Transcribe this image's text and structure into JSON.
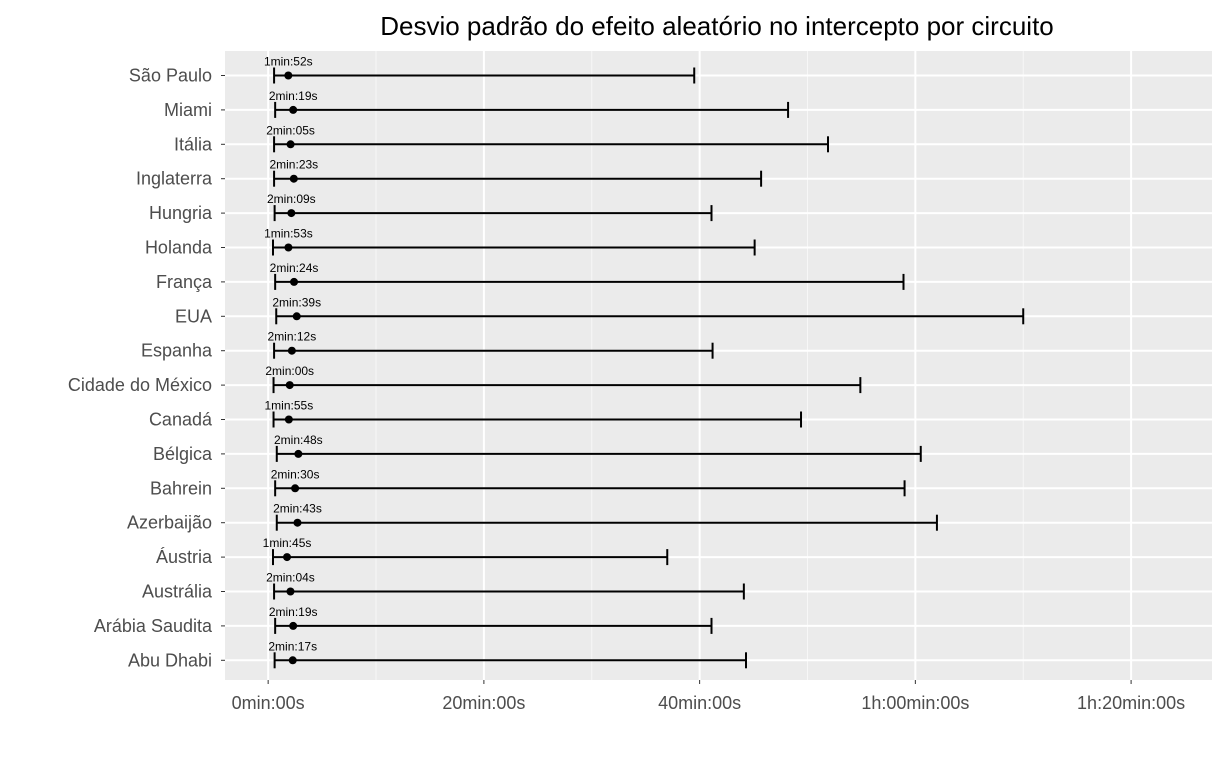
{
  "chart_data": {
    "type": "errorbar",
    "title": "Desvio padrão do efeito aleatório no intercepto por circuito",
    "xlabel": "",
    "ylabel": "",
    "x_unit": "minutes",
    "xlim": [
      -4,
      87.5
    ],
    "x_ticks": [
      {
        "value": 0,
        "label": "0min:00s"
      },
      {
        "value": 20,
        "label": "20min:00s"
      },
      {
        "value": 40,
        "label": "40min:00s"
      },
      {
        "value": 60,
        "label": "1h:00min:00s"
      },
      {
        "value": 80,
        "label": "1h:20min:00s"
      }
    ],
    "grid": true,
    "categories": [
      "São Paulo",
      "Miami",
      "Itália",
      "Inglaterra",
      "Hungria",
      "Holanda",
      "França",
      "EUA",
      "Espanha",
      "Cidade do México",
      "Canadá",
      "Bélgica",
      "Bahrein",
      "Azerbaijão",
      "Áustria",
      "Austrália",
      "Arábia Saudita",
      "Abu Dhabi"
    ],
    "estimates": [
      1.87,
      2.32,
      2.08,
      2.38,
      2.15,
      1.88,
      2.4,
      2.65,
      2.2,
      2.0,
      1.92,
      2.8,
      2.5,
      2.72,
      1.75,
      2.07,
      2.32,
      2.28
    ],
    "estimate_labels": [
      "1min:52s",
      "2min:19s",
      "2min:05s",
      "2min:23s",
      "2min:09s",
      "1min:53s",
      "2min:24s",
      "2min:39s",
      "2min:12s",
      "2min:00s",
      "1min:55s",
      "2min:48s",
      "2min:30s",
      "2min:43s",
      "1min:45s",
      "2min:04s",
      "2min:19s",
      "2min:17s"
    ],
    "lower": [
      0.55,
      0.65,
      0.55,
      0.55,
      0.6,
      0.45,
      0.65,
      0.75,
      0.55,
      0.5,
      0.5,
      0.8,
      0.65,
      0.8,
      0.45,
      0.55,
      0.65,
      0.6
    ],
    "upper": [
      39.5,
      48.2,
      51.9,
      45.7,
      41.1,
      45.1,
      58.9,
      70.0,
      41.2,
      54.9,
      49.4,
      60.5,
      59.0,
      62.0,
      37.0,
      44.1,
      41.1,
      44.3
    ],
    "colors": {
      "panel": "#ebebeb",
      "grid_major": "#ffffff",
      "grid_minor": "#f7f7f7",
      "marks": "#000000",
      "tick": "#333333",
      "label": "#4d4d4d"
    }
  }
}
